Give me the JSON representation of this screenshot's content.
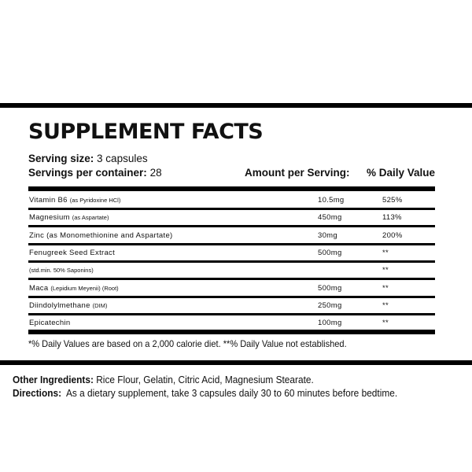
{
  "title": "SUPPLEMENT FACTS",
  "serving_size": {
    "label": "Serving size:",
    "value": "3 capsules"
  },
  "servings_per_container": {
    "label": "Servings per container:",
    "value": "28"
  },
  "columns": {
    "amount": "Amount per Serving:",
    "dv": "% Daily Value"
  },
  "rows": [
    {
      "name": "Vitamin B6",
      "note": "(as Pyridoxine HCl)",
      "amount": "10.5mg",
      "dv": "525%"
    },
    {
      "name": "Magnesium",
      "note": "(as Aspartate)",
      "amount": "450mg",
      "dv": "113%"
    },
    {
      "name": "Zinc (as Monomethionine and Aspartate)",
      "note": "",
      "amount": "30mg",
      "dv": "200%"
    },
    {
      "name": "Fenugreek Seed Extract",
      "note": "",
      "amount": "500mg",
      "dv": "**"
    },
    {
      "name": "",
      "note": "(std.min. 50% Saponins)",
      "amount": "",
      "dv": "**"
    },
    {
      "name": "Maca",
      "note": "(Lepidium Meyenii) (Root)",
      "amount": "500mg",
      "dv": "**"
    },
    {
      "name": "Diindolylmethane",
      "note": "(DIM)",
      "amount": "250mg",
      "dv": "**"
    },
    {
      "name": "Epicatechin",
      "note": "",
      "amount": "100mg",
      "dv": "**"
    }
  ],
  "footnote": "*% Daily Values are based on a 2,000 calorie diet. **% Daily Value not established.",
  "other_ingredients": {
    "label": "Other Ingredients:",
    "value": "Rice Flour, Gelatin, Citric Acid, Magnesium Stearate."
  },
  "directions": {
    "label": "Directions:",
    "value": "As a dietary supplement, take 3 capsules daily 30 to 60 minutes before bedtime."
  }
}
